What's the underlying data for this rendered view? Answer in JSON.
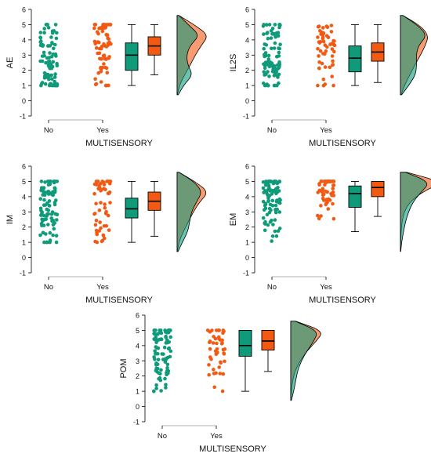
{
  "colors": {
    "no": "#0f9a7a",
    "yes": "#f25a14",
    "overlap": "#a08557",
    "axis": "#000000"
  },
  "chart_data": [
    {
      "type": "raincloud",
      "ylabel": "AE",
      "xlabel": "MULTISENSORY",
      "categories": [
        "No",
        "Yes"
      ],
      "ylim": [
        -1,
        6
      ],
      "yticks": [
        -1,
        0,
        1,
        2,
        3,
        4,
        5,
        6
      ],
      "boxes": [
        {
          "group": "No",
          "min": 1,
          "q1": 2,
          "median": 3,
          "q3": 3.8,
          "max": 5
        },
        {
          "group": "Yes",
          "min": 1.7,
          "q1": 3,
          "median": 3.6,
          "q3": 4.2,
          "max": 5
        }
      ],
      "density": {
        "No": [
          0.04,
          0.22,
          0.5,
          0.34,
          0.3,
          0.42,
          0.72,
          0.38,
          0.06
        ],
        "Yes": [
          0.01,
          0.08,
          0.24,
          0.42,
          0.58,
          0.78,
          1.0,
          0.58,
          0.06
        ]
      },
      "points": {
        "No": {
          "n": 90,
          "seed": 11,
          "weights": [
            0.14,
            0.11,
            0.17,
            0.16,
            0.13,
            0.14,
            0.15
          ]
        },
        "Yes": {
          "n": 70,
          "seed": 23,
          "weights": [
            0.05,
            0.07,
            0.12,
            0.18,
            0.22,
            0.2,
            0.16
          ]
        }
      }
    },
    {
      "type": "raincloud",
      "ylabel": "IL2S",
      "xlabel": "MULTISENSORY",
      "categories": [
        "No",
        "Yes"
      ],
      "ylim": [
        -1,
        6
      ],
      "yticks": [
        -1,
        0,
        1,
        2,
        3,
        4,
        5,
        6
      ],
      "boxes": [
        {
          "group": "No",
          "min": 1,
          "q1": 1.9,
          "median": 2.8,
          "q3": 3.6,
          "max": 5
        },
        {
          "group": "Yes",
          "min": 1.2,
          "q1": 2.6,
          "median": 3.2,
          "q3": 3.8,
          "max": 5
        }
      ],
      "density": {
        "No": [
          0.04,
          0.28,
          0.48,
          0.52,
          0.5,
          0.58,
          0.85,
          0.55,
          0.08
        ],
        "Yes": [
          0.02,
          0.14,
          0.3,
          0.46,
          0.64,
          0.8,
          0.9,
          0.62,
          0.08
        ]
      },
      "points": {
        "No": {
          "n": 90,
          "seed": 37,
          "weights": [
            0.14,
            0.13,
            0.17,
            0.15,
            0.13,
            0.14,
            0.14
          ]
        },
        "Yes": {
          "n": 55,
          "seed": 41,
          "weights": [
            0.08,
            0.1,
            0.15,
            0.17,
            0.19,
            0.17,
            0.14
          ]
        }
      }
    },
    {
      "type": "raincloud",
      "ylabel": "IM",
      "xlabel": "MULTISENSORY",
      "categories": [
        "No",
        "Yes"
      ],
      "ylim": [
        -1,
        6
      ],
      "yticks": [
        -1,
        0,
        1,
        2,
        3,
        4,
        5,
        6
      ],
      "boxes": [
        {
          "group": "No",
          "min": 1,
          "q1": 2.6,
          "median": 3.2,
          "q3": 3.9,
          "max": 5
        },
        {
          "group": "Yes",
          "min": 1.4,
          "q1": 3.1,
          "median": 3.7,
          "q3": 4.3,
          "max": 5
        }
      ],
      "density": {
        "No": [
          0.03,
          0.18,
          0.34,
          0.4,
          0.46,
          0.62,
          0.8,
          0.56,
          0.06
        ],
        "Yes": [
          0.01,
          0.06,
          0.2,
          0.36,
          0.52,
          0.72,
          1.0,
          0.6,
          0.06
        ]
      },
      "points": {
        "No": {
          "n": 90,
          "seed": 53,
          "weights": [
            0.06,
            0.1,
            0.16,
            0.18,
            0.18,
            0.16,
            0.16
          ]
        },
        "Yes": {
          "n": 55,
          "seed": 67,
          "weights": [
            0.06,
            0.06,
            0.12,
            0.18,
            0.2,
            0.2,
            0.18
          ]
        }
      }
    },
    {
      "type": "raincloud",
      "ylabel": "EM",
      "xlabel": "MULTISENSORY",
      "categories": [
        "No",
        "Yes"
      ],
      "ylim": [
        -1,
        6
      ],
      "yticks": [
        -1,
        0,
        1,
        2,
        3,
        4,
        5,
        6
      ],
      "boxes": [
        {
          "group": "No",
          "min": 1.7,
          "q1": 3.3,
          "median": 4.2,
          "q3": 4.7,
          "max": 5
        },
        {
          "group": "Yes",
          "min": 2.7,
          "q1": 4.0,
          "median": 4.6,
          "q3": 5,
          "max": 5
        }
      ],
      "density": {
        "No": [
          0.01,
          0.04,
          0.1,
          0.16,
          0.26,
          0.4,
          0.66,
          0.95,
          0.16
        ],
        "Yes": [
          0,
          0.01,
          0.02,
          0.05,
          0.12,
          0.3,
          0.7,
          1.35,
          0.2
        ]
      },
      "points": {
        "No": {
          "n": 90,
          "seed": 71,
          "weights": [
            0.04,
            0.04,
            0.08,
            0.14,
            0.2,
            0.24,
            0.26
          ]
        },
        "Yes": {
          "n": 55,
          "seed": 83,
          "weights": [
            0,
            0,
            0.02,
            0.08,
            0.18,
            0.3,
            0.42
          ]
        }
      }
    },
    {
      "type": "raincloud",
      "ylabel": "POM",
      "xlabel": "MULTISENSORY",
      "categories": [
        "No",
        "Yes"
      ],
      "ylim": [
        -1,
        6
      ],
      "yticks": [
        -1,
        0,
        1,
        2,
        3,
        4,
        5,
        6
      ],
      "boxes": [
        {
          "group": "No",
          "min": 1,
          "q1": 3.3,
          "median": 4,
          "q3": 5,
          "max": 5
        },
        {
          "group": "Yes",
          "min": 2.3,
          "q1": 3.7,
          "median": 4.3,
          "q3": 5,
          "max": 5
        }
      ],
      "density": {
        "No": [
          0.02,
          0.1,
          0.16,
          0.22,
          0.34,
          0.52,
          0.74,
          0.88,
          0.14
        ],
        "Yes": [
          0,
          0.02,
          0.06,
          0.14,
          0.3,
          0.52,
          0.82,
          1.05,
          0.16
        ]
      },
      "points": {
        "No": {
          "n": 90,
          "seed": 97,
          "weights": [
            0.05,
            0.06,
            0.1,
            0.16,
            0.2,
            0.2,
            0.23
          ]
        },
        "Yes": {
          "n": 45,
          "seed": 101,
          "weights": [
            0.02,
            0.04,
            0.08,
            0.14,
            0.2,
            0.24,
            0.28
          ]
        }
      }
    }
  ]
}
